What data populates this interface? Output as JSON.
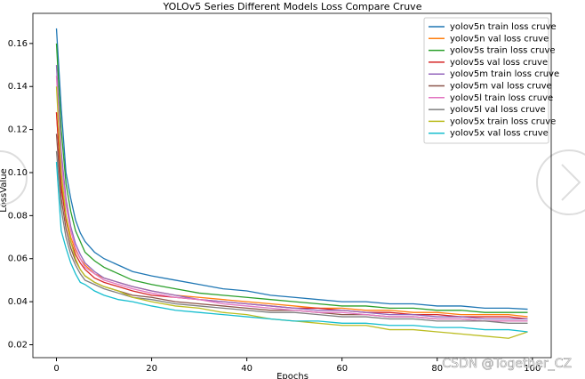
{
  "chart_data": {
    "type": "line",
    "title": "YOLOv5 Series Different Models Loss Compare Cruve",
    "x_label": "Epochs",
    "y_label": "LossValue",
    "watermark": "CSDN @Together_CZ",
    "legend": "upper right",
    "x": [
      0,
      1,
      2,
      3,
      4,
      5,
      6,
      8,
      10,
      13,
      16,
      20,
      25,
      30,
      35,
      40,
      45,
      50,
      55,
      60,
      65,
      70,
      75,
      80,
      85,
      90,
      95,
      99
    ],
    "xlim": [
      -4.95,
      103.95
    ],
    "xticks": [
      0,
      20,
      40,
      60,
      80,
      100
    ],
    "ylim": [
      0.014,
      0.174
    ],
    "yticks": [
      0.02,
      0.04,
      0.06,
      0.08,
      {
        "value": 0.1,
        "label": "0.10"
      },
      0.12,
      0.14,
      0.16
    ],
    "series": [
      {
        "name": "yolov5n train loss cruve",
        "color": "#1f77b4",
        "values": [
          0.167,
          0.13,
          0.1,
          0.088,
          0.078,
          0.072,
          0.068,
          0.063,
          0.06,
          0.057,
          0.054,
          0.052,
          0.05,
          0.048,
          0.046,
          0.045,
          0.043,
          0.042,
          0.041,
          0.04,
          0.04,
          0.039,
          0.039,
          0.038,
          0.038,
          0.037,
          0.037,
          0.0365
        ]
      },
      {
        "name": "yolov5n val loss cruve",
        "color": "#ff7f0e",
        "values": [
          0.128,
          0.095,
          0.08,
          0.07,
          0.064,
          0.06,
          0.057,
          0.053,
          0.051,
          0.049,
          0.047,
          0.045,
          0.043,
          0.042,
          0.041,
          0.04,
          0.039,
          0.038,
          0.037,
          0.037,
          0.036,
          0.036,
          0.035,
          0.035,
          0.034,
          0.034,
          0.034,
          0.033
        ]
      },
      {
        "name": "yolov5s train loss cruve",
        "color": "#2ca02c",
        "values": [
          0.16,
          0.12,
          0.095,
          0.082,
          0.073,
          0.068,
          0.063,
          0.059,
          0.056,
          0.053,
          0.05,
          0.048,
          0.046,
          0.044,
          0.043,
          0.042,
          0.041,
          0.04,
          0.039,
          0.038,
          0.038,
          0.037,
          0.037,
          0.036,
          0.036,
          0.035,
          0.035,
          0.035
        ]
      },
      {
        "name": "yolov5s val loss cruve",
        "color": "#d62728",
        "values": [
          0.128,
          0.093,
          0.078,
          0.068,
          0.062,
          0.058,
          0.055,
          0.051,
          0.049,
          0.047,
          0.045,
          0.043,
          0.042,
          0.041,
          0.04,
          0.039,
          0.038,
          0.037,
          0.037,
          0.036,
          0.035,
          0.035,
          0.034,
          0.034,
          0.033,
          0.033,
          0.033,
          0.032
        ]
      },
      {
        "name": "yolov5m train loss cruve",
        "color": "#9467bd",
        "values": [
          0.15,
          0.11,
          0.088,
          0.075,
          0.067,
          0.062,
          0.058,
          0.054,
          0.051,
          0.049,
          0.047,
          0.045,
          0.043,
          0.041,
          0.04,
          0.039,
          0.038,
          0.037,
          0.036,
          0.036,
          0.035,
          0.034,
          0.034,
          0.033,
          0.033,
          0.032,
          0.032,
          0.032
        ]
      },
      {
        "name": "yolov5m val loss cruve",
        "color": "#8c564b",
        "values": [
          0.118,
          0.088,
          0.074,
          0.065,
          0.059,
          0.055,
          0.052,
          0.049,
          0.047,
          0.045,
          0.043,
          0.042,
          0.04,
          0.039,
          0.038,
          0.037,
          0.036,
          0.036,
          0.035,
          0.034,
          0.034,
          0.033,
          0.033,
          0.032,
          0.032,
          0.031,
          0.031,
          0.031
        ]
      },
      {
        "name": "yolov5l train loss cruve",
        "color": "#e377c2",
        "values": [
          0.145,
          0.105,
          0.085,
          0.073,
          0.065,
          0.06,
          0.056,
          0.053,
          0.05,
          0.048,
          0.046,
          0.044,
          0.042,
          0.041,
          0.039,
          0.038,
          0.037,
          0.036,
          0.035,
          0.035,
          0.034,
          0.033,
          0.033,
          0.032,
          0.032,
          0.031,
          0.031,
          0.031
        ]
      },
      {
        "name": "yolov5l val loss cruve",
        "color": "#7f7f7f",
        "values": [
          0.11,
          0.083,
          0.07,
          0.062,
          0.057,
          0.053,
          0.05,
          0.048,
          0.046,
          0.044,
          0.042,
          0.041,
          0.039,
          0.038,
          0.037,
          0.036,
          0.035,
          0.035,
          0.034,
          0.033,
          0.033,
          0.032,
          0.032,
          0.031,
          0.031,
          0.031,
          0.03,
          0.03
        ]
      },
      {
        "name": "yolov5x train loss cruve",
        "color": "#bcbd22",
        "values": [
          0.14,
          0.1,
          0.08,
          0.068,
          0.06,
          0.055,
          0.052,
          0.049,
          0.047,
          0.045,
          0.042,
          0.04,
          0.038,
          0.037,
          0.035,
          0.034,
          0.032,
          0.031,
          0.03,
          0.029,
          0.029,
          0.027,
          0.027,
          0.026,
          0.025,
          0.024,
          0.023,
          0.026
        ]
      },
      {
        "name": "yolov5x val loss cruve",
        "color": "#17becf",
        "values": [
          0.105,
          0.073,
          0.065,
          0.058,
          0.053,
          0.049,
          0.048,
          0.045,
          0.043,
          0.041,
          0.04,
          0.038,
          0.036,
          0.035,
          0.034,
          0.033,
          0.032,
          0.031,
          0.031,
          0.03,
          0.03,
          0.029,
          0.029,
          0.028,
          0.028,
          0.027,
          0.027,
          0.026
        ]
      }
    ]
  }
}
